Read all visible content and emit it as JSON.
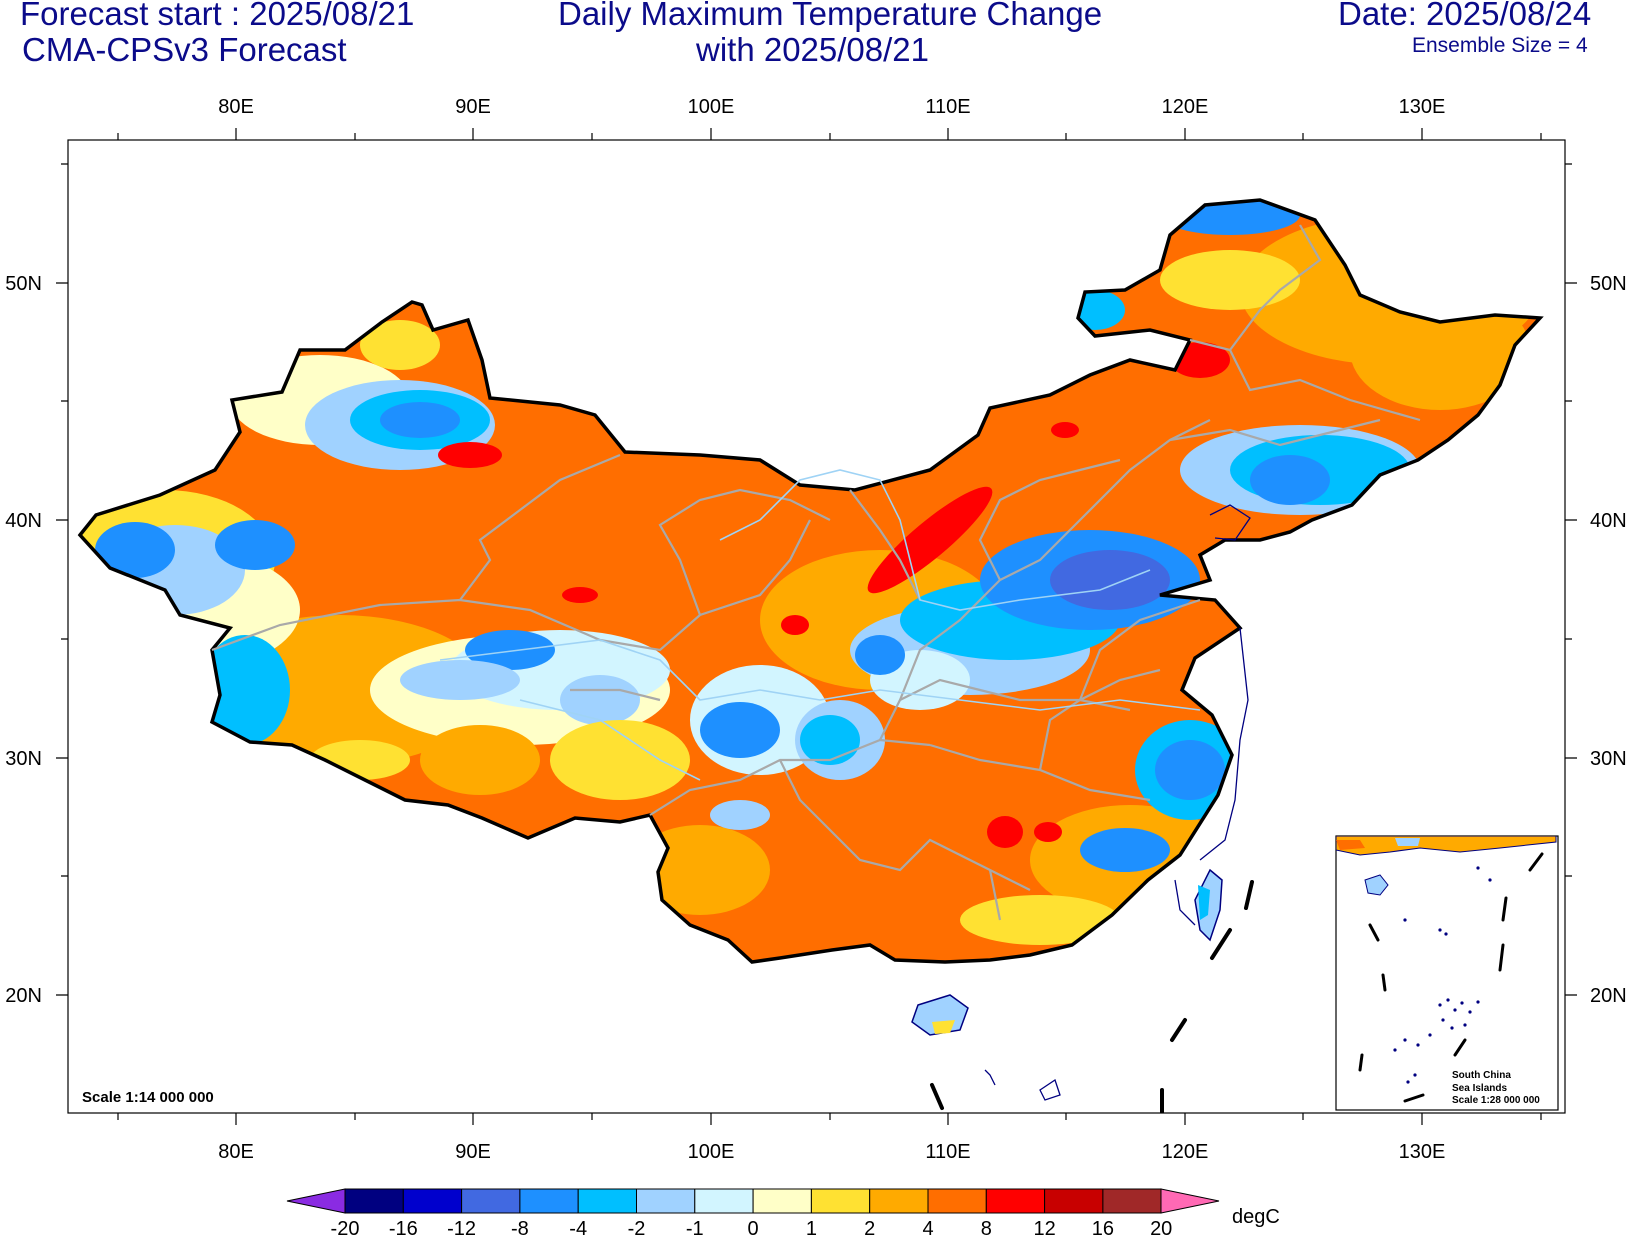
{
  "header": {
    "forecast_start": "Forecast start : 2025/08/21",
    "model": "CMA-CPSv3 Forecast",
    "title_line1": "Daily Maximum Temperature Change",
    "title_line2": "with 2025/08/21",
    "date": "Date: 2025/08/24",
    "ensemble": "Ensemble Size = 4"
  },
  "map": {
    "lon_labels": [
      "80E",
      "90E",
      "100E",
      "110E",
      "120E",
      "130E"
    ],
    "lat_labels": [
      "50N",
      "40N",
      "30N",
      "20N"
    ],
    "scale_note": "Scale 1:14 000 000",
    "inset": {
      "line1": "South China",
      "line2": "Sea Islands",
      "line3": "Scale 1:28 000 000"
    }
  },
  "legend": {
    "unit": "degC",
    "tick_labels": [
      "-20",
      "-16",
      "-12",
      "-8",
      "-4",
      "-2",
      "-1",
      "0",
      "1",
      "2",
      "4",
      "8",
      "12",
      "16",
      "20"
    ],
    "colors": [
      "#000080",
      "#0000cd",
      "#4169e1",
      "#1e90ff",
      "#00bfff",
      "#a0d2ff",
      "#d2f5ff",
      "#ffffc8",
      "#ffe132",
      "#ffaa00",
      "#ff6e00",
      "#ff0000",
      "#c80000",
      "#a02828"
    ],
    "under_color": "#8a2be2",
    "over_color": "#ff69b4"
  }
}
